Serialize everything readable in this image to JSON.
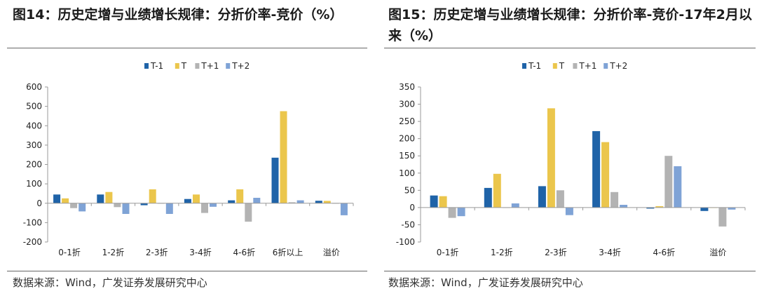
{
  "colors": {
    "T-1": "#1f63a8",
    "T": "#ebc64c",
    "T+1": "#b3b3b3",
    "T+2": "#7fa3d6"
  },
  "charts": [
    {
      "title": "图14：历史定增与业绩增长规律：分折价率-竞价（%）",
      "source": "数据来源：Wind，广发证券发展研究中心",
      "chart_data": {
        "type": "bar",
        "categories": [
          "0-1折",
          "1-2折",
          "2-3折",
          "3-4折",
          "4-6折",
          "6折以上",
          "溢价"
        ],
        "series": [
          {
            "name": "T-1",
            "values": [
              45,
              45,
              -10,
              22,
              15,
              235,
              13
            ]
          },
          {
            "name": "T",
            "values": [
              25,
              58,
              72,
              45,
              72,
              475,
              12
            ]
          },
          {
            "name": "T+1",
            "values": [
              -25,
              -20,
              0,
              -50,
              -95,
              5,
              0
            ]
          },
          {
            "name": "T+2",
            "values": [
              -42,
              -55,
              -55,
              -18,
              28,
              15,
              -62
            ]
          }
        ],
        "ylim": [
          -200,
          600
        ],
        "yticks": [
          -200,
          -100,
          0,
          100,
          200,
          300,
          400,
          500,
          600
        ],
        "legend": "top-center"
      }
    },
    {
      "title": "图15：历史定增与业绩增长规律：分折价率-竞价-17年2月以来（%）",
      "source": "数据来源：Wind，广发证券发展研究中心",
      "chart_data": {
        "type": "bar",
        "categories": [
          "0-1折",
          "1-2折",
          "2-3折",
          "3-4折",
          "4-6折",
          "溢价"
        ],
        "series": [
          {
            "name": "T-1",
            "values": [
              35,
              57,
              62,
              222,
              -3,
              -10
            ]
          },
          {
            "name": "T",
            "values": [
              33,
              98,
              288,
              190,
              4,
              0
            ]
          },
          {
            "name": "T+1",
            "values": [
              -30,
              0,
              50,
              45,
              150,
              -55
            ]
          },
          {
            "name": "T+2",
            "values": [
              -25,
              12,
              -22,
              8,
              120,
              -6
            ]
          }
        ],
        "ylim": [
          -100,
          350
        ],
        "yticks": [
          -100,
          -50,
          0,
          50,
          100,
          150,
          200,
          250,
          300,
          350
        ],
        "legend": "top-center"
      }
    }
  ]
}
